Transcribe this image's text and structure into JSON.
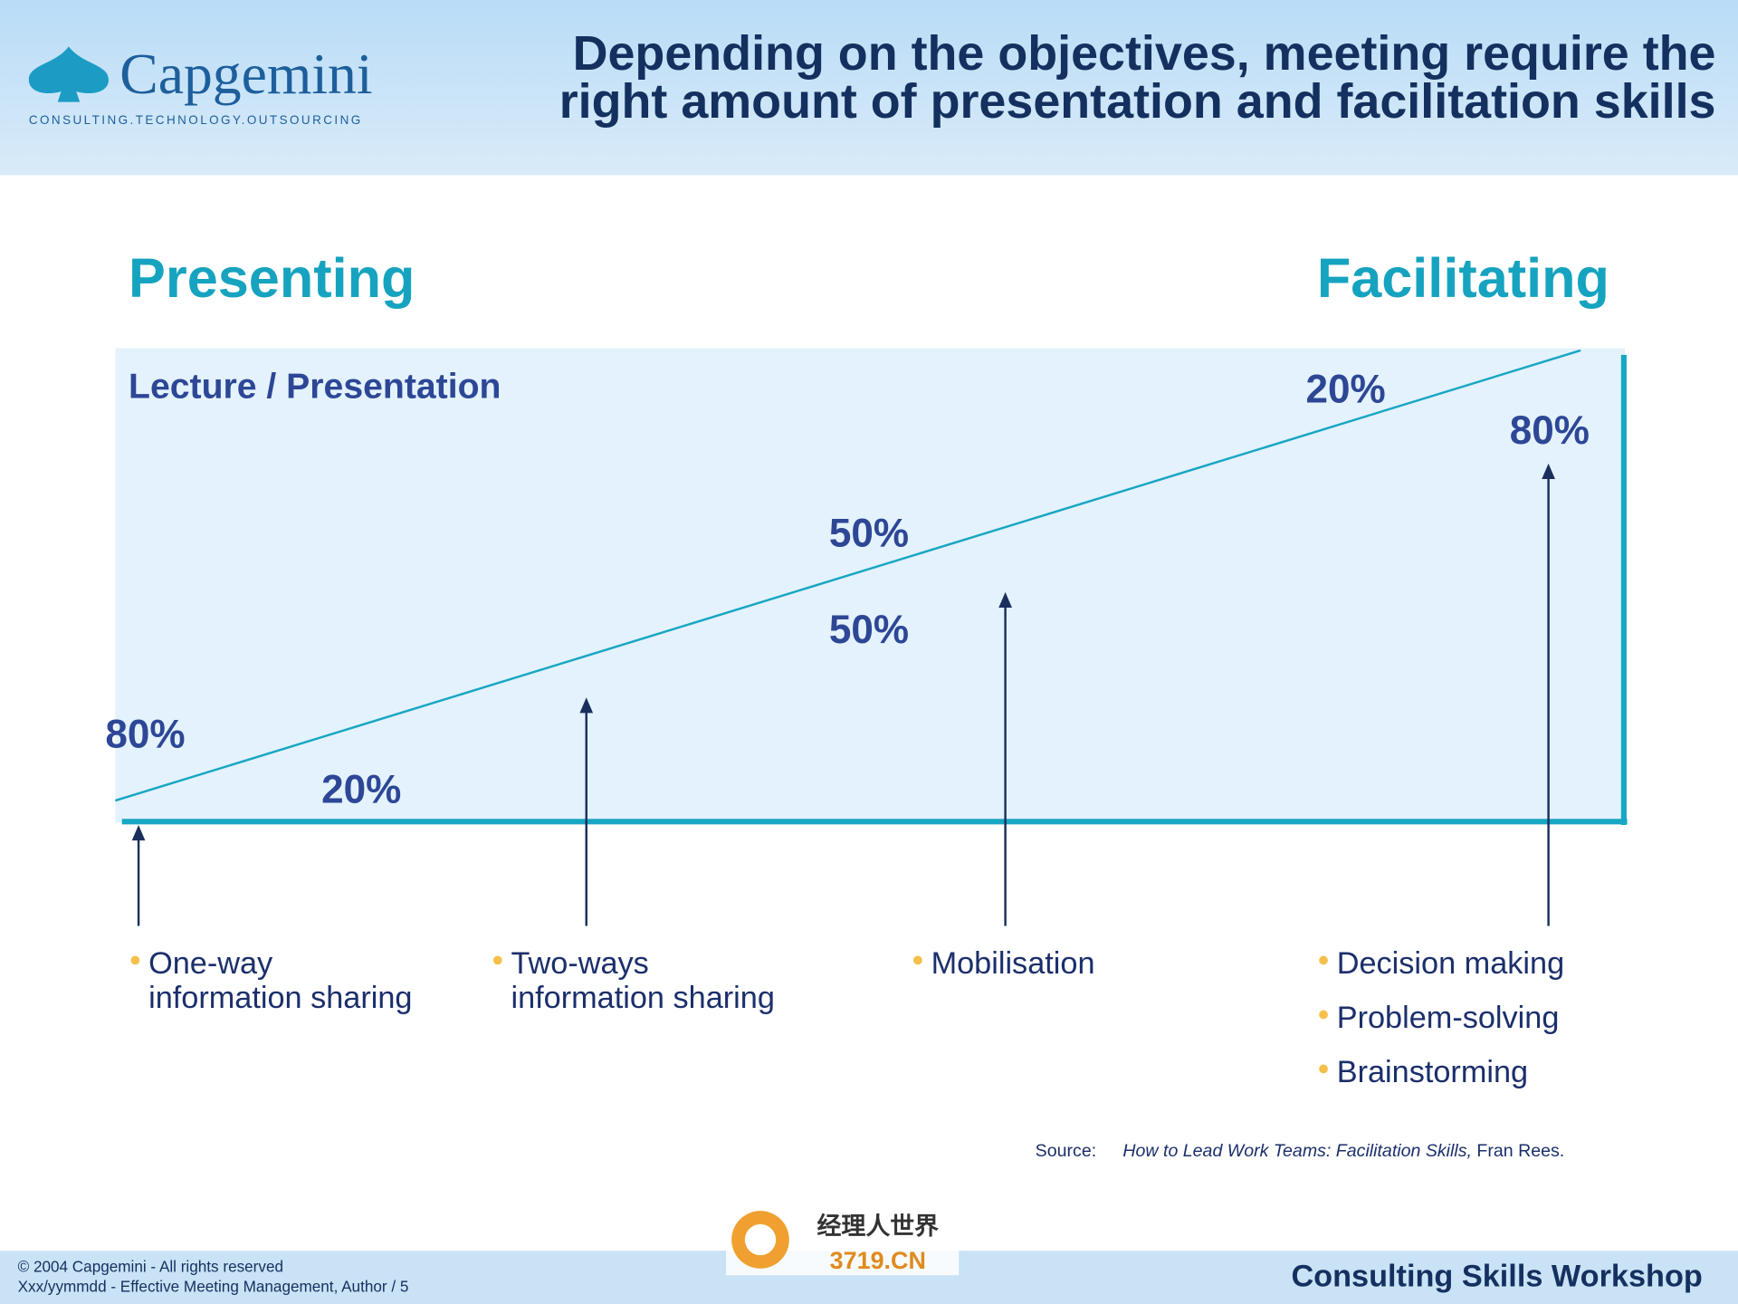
{
  "header": {
    "logo": {
      "name": "Capgemini",
      "tagline": "CONSULTING.TECHNOLOGY.OUTSOURCING"
    },
    "title": [
      "Depending on the objectives, meeting require the",
      "right amount of presentation and facilitation skills"
    ]
  },
  "diagram": {
    "left_heading": "Presenting",
    "right_heading": "Facilitating",
    "box_label": "Lecture / Presentation",
    "percentages": [
      "80%",
      "20%",
      "50%",
      "50%",
      "20%",
      "80%"
    ],
    "items": [
      [
        "One-way",
        "information sharing"
      ],
      [
        "Two-ways",
        "information sharing"
      ],
      [
        "Mobilisation"
      ],
      [
        "Decision making",
        "Problem-solving",
        "Brainstorming"
      ]
    ]
  },
  "source": {
    "label": "Source:",
    "title": "How to Lead Work Teams:  Facilitation Skills,",
    "author": "Fran Rees."
  },
  "footer": {
    "copyright": "© 2004 Capgemini - All rights reserved",
    "reference": "Xxx/yymmdd - Effective Meeting Management, Author / 5",
    "workshop": "Consulting Skills Workshop",
    "watermark": [
      "经理人世界",
      "3719.CN"
    ]
  }
}
